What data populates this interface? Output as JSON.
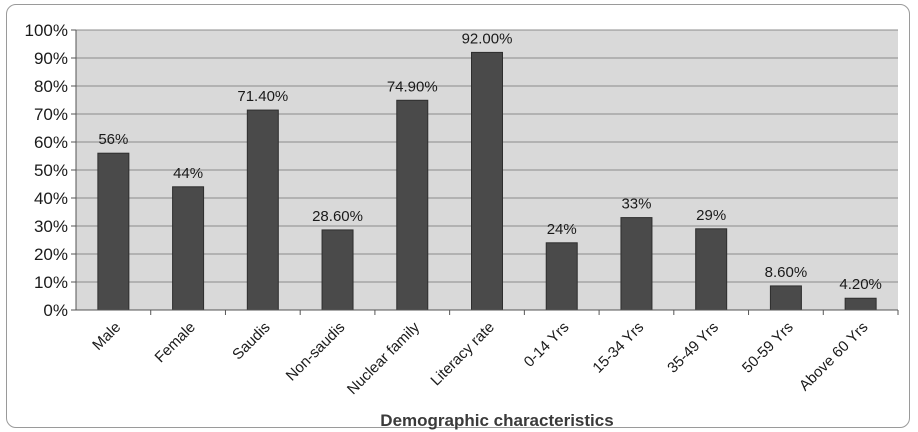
{
  "chart_data": {
    "type": "bar",
    "categories": [
      "Male",
      "Female",
      "Saudis",
      "Non-saudis",
      "Nuclear family",
      "Literacy rate",
      "0-14 Yrs",
      "15-34 Yrs",
      "35-49 Yrs",
      "50-59 Yrs",
      "Above 60 Yrs"
    ],
    "values": [
      56,
      44,
      71.4,
      28.6,
      74.9,
      92.0,
      24,
      33,
      29,
      8.6,
      4.2
    ],
    "data_labels": [
      "56%",
      "44%",
      "71.40%",
      "28.60%",
      "74.90%",
      "92.00%",
      "24%",
      "33%",
      "29%",
      "8.60%",
      "4.20%"
    ],
    "title": "",
    "xlabel": "Demographic characteristics",
    "ylabel": "",
    "ylim": [
      0,
      100
    ],
    "yticks": [
      0,
      10,
      20,
      30,
      40,
      50,
      60,
      70,
      80,
      90,
      100
    ],
    "ytick_labels": [
      "0%",
      "10%",
      "20%",
      "30%",
      "40%",
      "50%",
      "60%",
      "70%",
      "80%",
      "90%",
      "100%"
    ],
    "grid": true,
    "legend": "none",
    "colors": {
      "bar": "#4a4a4a",
      "bar_edge": "#2e2e2e",
      "plot_background": "#d9d9d9",
      "gridline": "#8c8c8c"
    }
  }
}
